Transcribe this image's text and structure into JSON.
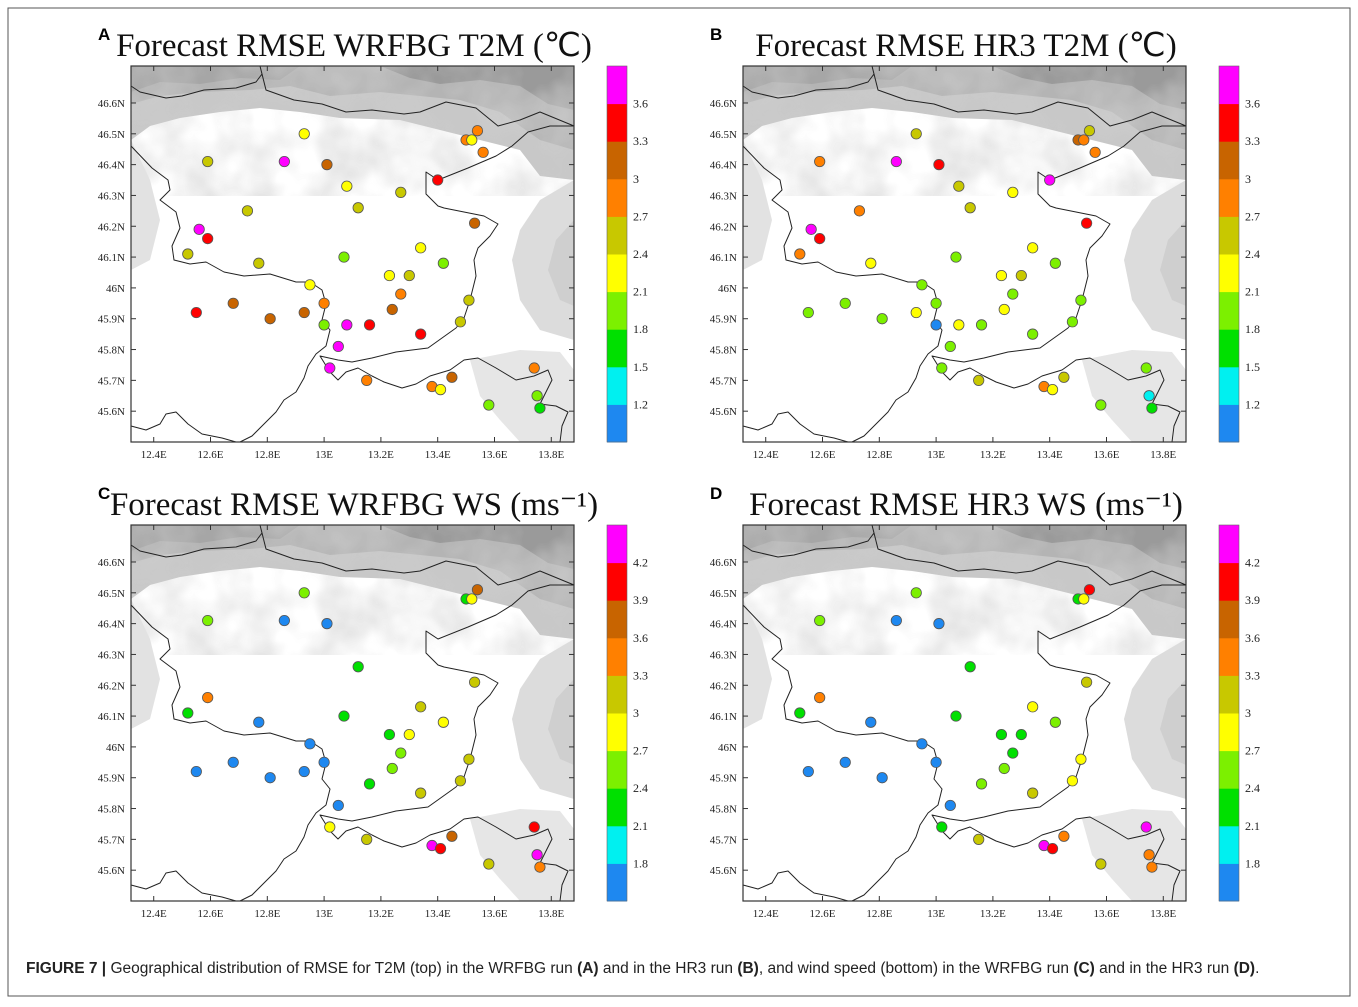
{
  "figure": {
    "caption_label": "FIGURE 7 |",
    "caption_parts": [
      {
        "text": " Geographical distribution of RMSE for T2M (top) in the WRFBG run ",
        "bold": false
      },
      {
        "text": "(A)",
        "bold": true
      },
      {
        "text": " and in the HR3 run ",
        "bold": false
      },
      {
        "text": "(B)",
        "bold": true
      },
      {
        "text": ", and wind speed (bottom) in the WRFBG run ",
        "bold": false
      },
      {
        "text": "(C)",
        "bold": true
      },
      {
        "text": " and in the HR3 run ",
        "bold": false
      },
      {
        "text": "(D)",
        "bold": true
      },
      {
        "text": ".",
        "bold": false
      }
    ]
  },
  "colors": {
    "t2m_scale": [
      "#1e88f0",
      "#00f0f0",
      "#00e000",
      "#7cf000",
      "#ffff00",
      "#c8c800",
      "#ff8000",
      "#c86400",
      "#ff0000",
      "#ff00ff"
    ],
    "ws_scale": [
      "#1e88f0",
      "#00f0f0",
      "#00e000",
      "#7cf000",
      "#ffff00",
      "#c8c800",
      "#ff8000",
      "#c86400",
      "#ff0000",
      "#ff00ff"
    ]
  },
  "map_axes": {
    "lon_ticks": [
      "12.4E",
      "12.6E",
      "12.8E",
      "13E",
      "13.2E",
      "13.4E",
      "13.6E",
      "13.8E"
    ],
    "lat_ticks": [
      "46.6N",
      "46.5N",
      "46.4N",
      "46.3N",
      "46.2N",
      "46.1N",
      "46N",
      "45.9N",
      "45.8N",
      "45.7N",
      "45.6N"
    ],
    "lon_range": [
      12.32,
      13.88
    ],
    "lat_range": [
      45.5,
      46.72
    ]
  },
  "stations": [
    {
      "lon": 12.59,
      "lat": 46.41
    },
    {
      "lon": 12.93,
      "lat": 46.5
    },
    {
      "lon": 12.86,
      "lat": 46.41
    },
    {
      "lon": 13.01,
      "lat": 46.4
    },
    {
      "lon": 12.73,
      "lat": 46.25
    },
    {
      "lon": 13.08,
      "lat": 46.33
    },
    {
      "lon": 13.12,
      "lat": 46.26
    },
    {
      "lon": 13.27,
      "lat": 46.31
    },
    {
      "lon": 13.4,
      "lat": 46.35
    },
    {
      "lon": 13.5,
      "lat": 46.48
    },
    {
      "lon": 13.52,
      "lat": 46.48
    },
    {
      "lon": 13.54,
      "lat": 46.51
    },
    {
      "lon": 13.56,
      "lat": 46.44
    },
    {
      "lon": 13.53,
      "lat": 46.21
    },
    {
      "lon": 12.56,
      "lat": 46.19
    },
    {
      "lon": 12.59,
      "lat": 46.16
    },
    {
      "lon": 12.52,
      "lat": 46.11
    },
    {
      "lon": 12.77,
      "lat": 46.08
    },
    {
      "lon": 13.07,
      "lat": 46.1
    },
    {
      "lon": 13.34,
      "lat": 46.13
    },
    {
      "lon": 13.42,
      "lat": 46.08
    },
    {
      "lon": 13.23,
      "lat": 46.04
    },
    {
      "lon": 13.3,
      "lat": 46.04
    },
    {
      "lon": 12.95,
      "lat": 46.01
    },
    {
      "lon": 13.27,
      "lat": 45.98
    },
    {
      "lon": 12.68,
      "lat": 45.95
    },
    {
      "lon": 13.0,
      "lat": 45.95
    },
    {
      "lon": 13.51,
      "lat": 45.96
    },
    {
      "lon": 12.55,
      "lat": 45.92
    },
    {
      "lon": 12.81,
      "lat": 45.9
    },
    {
      "lon": 12.93,
      "lat": 45.92
    },
    {
      "lon": 13.24,
      "lat": 45.93
    },
    {
      "lon": 13.0,
      "lat": 45.88
    },
    {
      "lon": 13.08,
      "lat": 45.88
    },
    {
      "lon": 13.16,
      "lat": 45.88
    },
    {
      "lon": 13.48,
      "lat": 45.89
    },
    {
      "lon": 13.34,
      "lat": 45.85
    },
    {
      "lon": 13.05,
      "lat": 45.81
    },
    {
      "lon": 13.02,
      "lat": 45.74
    },
    {
      "lon": 13.15,
      "lat": 45.7
    },
    {
      "lon": 13.38,
      "lat": 45.68
    },
    {
      "lon": 13.41,
      "lat": 45.67
    },
    {
      "lon": 13.45,
      "lat": 45.71
    },
    {
      "lon": 13.58,
      "lat": 45.62
    },
    {
      "lon": 13.74,
      "lat": 45.74
    },
    {
      "lon": 13.75,
      "lat": 45.65
    },
    {
      "lon": 13.76,
      "lat": 45.61
    }
  ],
  "panels": [
    {
      "letter": "A",
      "title": "Forecast RMSE WRFBG T2M (℃)",
      "colorbar": {
        "labels": [
          "1.2",
          "1.5",
          "1.8",
          "2.1",
          "2.4",
          "2.7",
          "3",
          "3.3",
          "3.6"
        ],
        "scale": "t2m"
      },
      "values": [
        2.5,
        2.2,
        3.8,
        3.2,
        2.5,
        2.2,
        2.5,
        2.5,
        3.5,
        2.8,
        2.2,
        2.8,
        2.8,
        3.2,
        3.8,
        3.5,
        2.5,
        2.5,
        1.9,
        2.2,
        1.9,
        2.2,
        2.5,
        2.2,
        2.8,
        3.2,
        2.8,
        2.5,
        3.5,
        3.2,
        3.2,
        3.2,
        1.9,
        3.8,
        3.5,
        2.5,
        3.5,
        3.8,
        3.8,
        2.8,
        2.8,
        2.2,
        3.2,
        1.9,
        2.8,
        1.9,
        1.6
      ]
    },
    {
      "letter": "B",
      "title": "Forecast RMSE HR3 T2M (℃)",
      "colorbar": {
        "labels": [
          "1.2",
          "1.5",
          "1.8",
          "2.1",
          "2.4",
          "2.7",
          "3",
          "3.3",
          "3.6"
        ],
        "scale": "t2m"
      },
      "values": [
        2.8,
        2.5,
        3.8,
        3.5,
        2.8,
        2.5,
        2.5,
        2.2,
        3.8,
        3.2,
        2.8,
        2.5,
        2.8,
        3.5,
        3.8,
        3.5,
        2.8,
        2.2,
        1.9,
        2.2,
        1.9,
        2.2,
        2.5,
        1.9,
        1.9,
        1.9,
        1.9,
        1.9,
        1.9,
        1.9,
        2.2,
        2.2,
        1.1,
        2.2,
        1.9,
        1.9,
        1.9,
        1.9,
        1.9,
        2.5,
        2.8,
        2.2,
        2.5,
        1.9,
        1.9,
        1.4,
        1.6
      ]
    },
    {
      "letter": "C",
      "title": "Forecast RMSE WRFBG WS (ms⁻¹)",
      "colorbar": {
        "labels": [
          "1.8",
          "2.1",
          "2.4",
          "2.7",
          "3",
          "3.3",
          "3.6",
          "3.9",
          "4.2"
        ],
        "scale": "ws"
      },
      "values": [
        2.6,
        2.6,
        1.5,
        1.5,
        null,
        null,
        2.3,
        null,
        null,
        2.3,
        2.9,
        3.7,
        null,
        3.2,
        null,
        3.4,
        2.3,
        1.5,
        2.3,
        3.2,
        2.9,
        2.3,
        2.9,
        1.5,
        2.6,
        1.5,
        1.7,
        3.2,
        1.5,
        1.7,
        1.5,
        2.6,
        null,
        null,
        2.3,
        3.2,
        3.2,
        1.7,
        2.9,
        3.2,
        4.3,
        4.0,
        3.7,
        3.2,
        4.0,
        4.3,
        3.4
      ]
    },
    {
      "letter": "D",
      "title": "Forecast RMSE HR3 WS (ms⁻¹)",
      "colorbar": {
        "labels": [
          "1.8",
          "2.1",
          "2.4",
          "2.7",
          "3",
          "3.3",
          "3.6",
          "3.9",
          "4.2"
        ],
        "scale": "ws"
      },
      "values": [
        2.6,
        2.6,
        1.5,
        1.5,
        null,
        null,
        2.3,
        null,
        null,
        2.3,
        2.9,
        4.0,
        null,
        3.2,
        null,
        3.4,
        2.3,
        1.5,
        2.3,
        2.9,
        2.6,
        2.3,
        2.3,
        1.5,
        2.3,
        1.5,
        1.7,
        2.9,
        1.5,
        1.5,
        null,
        2.6,
        null,
        null,
        2.6,
        2.9,
        3.2,
        1.5,
        2.3,
        3.2,
        4.3,
        4.0,
        3.4,
        3.2,
        4.3,
        3.4,
        3.4
      ]
    }
  ]
}
